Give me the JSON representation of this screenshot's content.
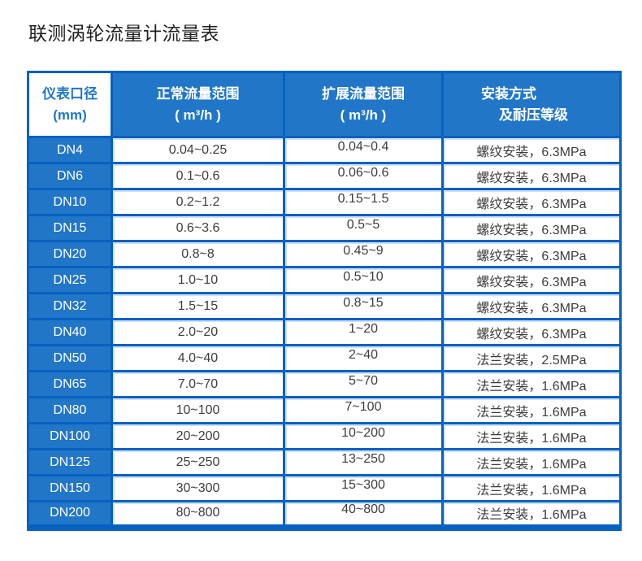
{
  "page_title": "联测涡轮流量计流量表",
  "colors": {
    "cell_blue": "#2176c8",
    "border_blue": "#0661c1",
    "light_edge": "#cfe2f5",
    "text_dark": "#3d3d3d",
    "title_color": "#1f1f1f"
  },
  "table": {
    "headers": [
      {
        "line1": "仪表口径",
        "line2": "(mm)"
      },
      {
        "line1": "正常流量范围",
        "line2": "( m³/h )"
      },
      {
        "line1": "扩展流量范围",
        "line2": "( m³/h )"
      },
      {
        "line1": "安装方式",
        "line2": "及耐压等级"
      }
    ]
  },
  "chart_data": {
    "type": "table",
    "title": "联测涡轮流量计流量表",
    "columns": [
      "仪表口径 (mm)",
      "正常流量范围 ( m³/h )",
      "扩展流量范围 ( m³/h )",
      "安装方式 及耐压等级"
    ],
    "rows": [
      [
        "DN4",
        "0.04~0.25",
        "0.04~0.4",
        "螺纹安装，6.3MPa"
      ],
      [
        "DN6",
        "0.1~0.6",
        "0.06~0.6",
        "螺纹安装，6.3MPa"
      ],
      [
        "DN10",
        "0.2~1.2",
        "0.15~1.5",
        "螺纹安装，6.3MPa"
      ],
      [
        "DN15",
        "0.6~3.6",
        "0.5~5",
        "螺纹安装，6.3MPa"
      ],
      [
        "DN20",
        "0.8~8",
        "0.45~9",
        "螺纹安装，6.3MPa"
      ],
      [
        "DN25",
        "1.0~10",
        "0.5~10",
        "螺纹安装，6.3MPa"
      ],
      [
        "DN32",
        "1.5~15",
        "0.8~15",
        "螺纹安装，6.3MPa"
      ],
      [
        "DN40",
        "2.0~20",
        "1~20",
        "螺纹安装，6.3MPa"
      ],
      [
        "DN50",
        "4.0~40",
        "2~40",
        "法兰安装，2.5MPa"
      ],
      [
        "DN65",
        "7.0~70",
        "5~70",
        "法兰安装，1.6MPa"
      ],
      [
        "DN80",
        "10~100",
        "7~100",
        "法兰安装，1.6MPa"
      ],
      [
        "DN100",
        "20~200",
        "10~200",
        "法兰安装，1.6MPa"
      ],
      [
        "DN125",
        "25~250",
        "13~250",
        "法兰安装，1.6MPa"
      ],
      [
        "DN150",
        "30~300",
        "15~300",
        "法兰安装，1.6MPa"
      ],
      [
        "DN200",
        "80~800",
        "40~800",
        "法兰安装，1.6MPa"
      ]
    ]
  }
}
